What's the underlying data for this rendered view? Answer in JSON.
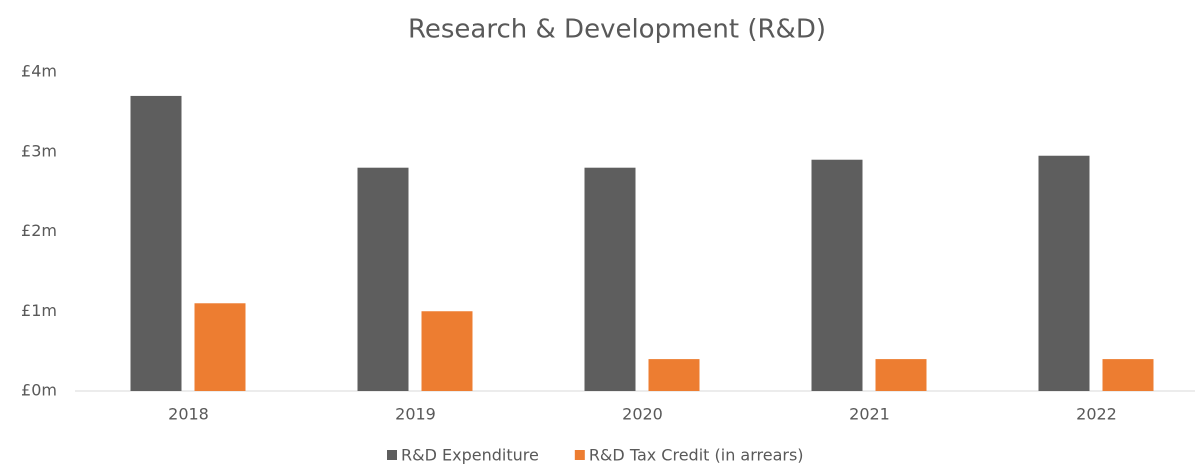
{
  "chart_data": {
    "type": "bar",
    "title": "Research & Development (R&D)",
    "categories": [
      "2018",
      "2019",
      "2020",
      "2021",
      "2022"
    ],
    "series": [
      {
        "name": "R&D Expenditure",
        "color": "#5e5e5e",
        "values": [
          3.7,
          2.8,
          2.8,
          2.9,
          2.95
        ]
      },
      {
        "name": "R&D Tax Credit (in arrears)",
        "color": "#ed7d31",
        "values": [
          1.1,
          1.0,
          0.4,
          0.4,
          0.4
        ]
      }
    ],
    "ylim": [
      0,
      4
    ],
    "yticks": [
      {
        "value": 0,
        "label": "£0m"
      },
      {
        "value": 1,
        "label": "£1m"
      },
      {
        "value": 2,
        "label": "£2m"
      },
      {
        "value": 3,
        "label": "£3m"
      },
      {
        "value": 4,
        "label": "£4m"
      }
    ],
    "grid": false,
    "legend": "bottom"
  }
}
